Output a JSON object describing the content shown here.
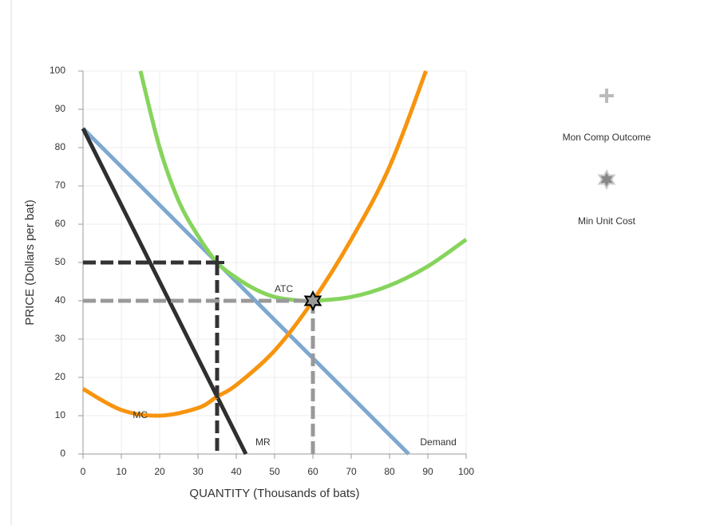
{
  "chart_data": {
    "type": "line",
    "x_label": "QUANTITY (Thousands of bats)",
    "y_label": "PRICE (Dollars per bat)",
    "xlim": [
      0,
      100
    ],
    "ylim": [
      0,
      100
    ],
    "xticks": [
      0,
      10,
      20,
      30,
      40,
      50,
      60,
      70,
      80,
      90,
      100
    ],
    "yticks": [
      0,
      10,
      20,
      30,
      40,
      50,
      60,
      70,
      80,
      90,
      100
    ],
    "grid": true,
    "series": [
      {
        "name": "Demand",
        "color": "#7ea8d0",
        "x": [
          0,
          85
        ],
        "values": [
          85,
          0
        ]
      },
      {
        "name": "MR",
        "color": "#2f2f2f",
        "x": [
          0,
          42.5
        ],
        "values": [
          85,
          0
        ]
      },
      {
        "name": "MC",
        "color": "#f7940e",
        "x": [
          0,
          10,
          20,
          30,
          35,
          40,
          50,
          60,
          70,
          80,
          89.5
        ],
        "values": [
          17,
          11.5,
          10,
          12,
          15,
          18,
          27,
          40,
          56,
          75,
          100
        ]
      },
      {
        "name": "ATC",
        "color": "#86d45c",
        "x": [
          15,
          20,
          25,
          30,
          35,
          40,
          45,
          50,
          55,
          60,
          70,
          80,
          90,
          100
        ],
        "values": [
          100,
          80,
          66,
          57,
          50,
          46,
          43,
          41,
          40.2,
          40,
          41,
          44,
          49,
          56
        ]
      }
    ],
    "points": [
      {
        "name": "Mon Comp Outcome",
        "marker": "plus",
        "color": "#333333",
        "x": [
          35
        ],
        "values": [
          50
        ]
      },
      {
        "name": "Min Unit Cost",
        "marker": "star",
        "color": "#999999",
        "x": [
          60
        ],
        "values": [
          40
        ]
      }
    ]
  }
}
